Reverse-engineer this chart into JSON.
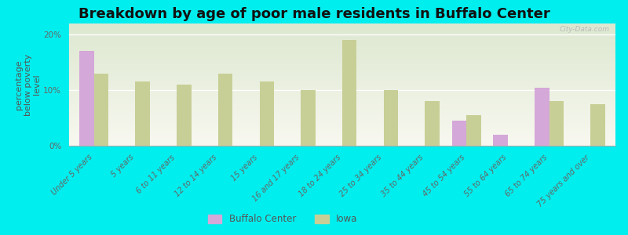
{
  "title": "Breakdown by age of poor male residents in Buffalo Center",
  "ylabel": "percentage\nbelow poverty\nlevel",
  "background_color": "#00eeee",
  "plot_bg_top": "#f8f8f0",
  "plot_bg_bottom": "#dde8d0",
  "categories": [
    "Under 5 years",
    "5 years",
    "6 to 11 years",
    "12 to 14 years",
    "15 years",
    "16 and 17 years",
    "18 to 24 years",
    "25 to 34 years",
    "35 to 44 years",
    "45 to 54 years",
    "55 to 64 years",
    "65 to 74 years",
    "75 years and over"
  ],
  "buffalo_center": [
    17.0,
    0,
    0,
    0,
    0,
    0,
    0,
    0,
    0,
    4.5,
    2.0,
    10.5,
    0
  ],
  "iowa": [
    13.0,
    11.5,
    11.0,
    13.0,
    11.5,
    10.0,
    19.0,
    10.0,
    8.0,
    5.5,
    0,
    8.0,
    7.5
  ],
  "bar_color_bc": "#d4a8d8",
  "bar_color_iowa": "#c8cf96",
  "ylim": [
    0,
    22
  ],
  "yticks": [
    0,
    10,
    20
  ],
  "ytick_labels": [
    "0%",
    "10%",
    "20%"
  ],
  "title_fontsize": 13,
  "axis_label_fontsize": 8,
  "tick_fontsize": 7.5,
  "legend_labels": [
    "Buffalo Center",
    "Iowa"
  ],
  "watermark": "City-Data.com"
}
